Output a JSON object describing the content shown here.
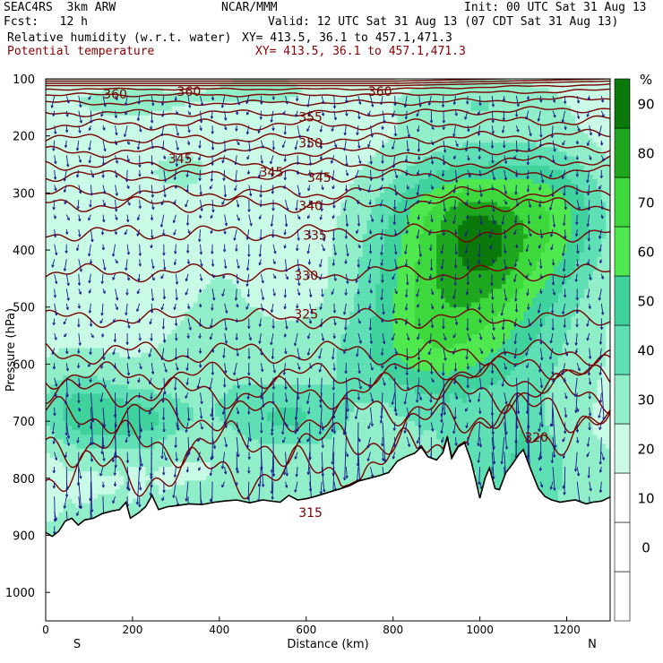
{
  "header": {
    "model": "SEAC4RS  3km ARW",
    "org": "NCAR/MMM",
    "init": "Init: 00 UTC Sat 31 Aug 13",
    "fcst": "Fcst:   12 h",
    "valid": "Valid: 12 UTC Sat 31 Aug 13 (07 CDT Sat 31 Aug 13)",
    "field1": "Relative humidity (w.r.t. water)",
    "xy1": "XY= 413.5, 36.1 to 457.1,471.3",
    "field2": "Potential temperature",
    "xy2": "XY= 413.5, 36.1 to 457.1,471.3"
  },
  "colors": {
    "rh_bins": [
      "#ffffff",
      "#ffffff",
      "#ffffff",
      "#c8fae6",
      "#90eec8",
      "#5fe0b4",
      "#3fd29c",
      "#4fe84f",
      "#3cd83c",
      "#1fa81f",
      "#0b780b"
    ],
    "theta": "#7a0000",
    "wind": "#1a1a8c",
    "terrain": "#000000"
  },
  "chart_data": {
    "type": "heatmap",
    "xlabel": "Distance (km)",
    "ylabel": "Pressure (hPa)",
    "xlim": [
      0,
      1300
    ],
    "ylim": [
      1050,
      100
    ],
    "xticks": [
      0,
      200,
      400,
      600,
      800,
      1000,
      1200
    ],
    "yticks": [
      100,
      200,
      300,
      400,
      500,
      600,
      700,
      800,
      900,
      1000
    ],
    "end_labels": {
      "left": "S",
      "right": "N"
    },
    "colorbar": {
      "unit": "%",
      "ticks": [
        0,
        10,
        20,
        30,
        40,
        50,
        60,
        70,
        80,
        90
      ],
      "range": [
        -10,
        100
      ]
    },
    "theta_labels": [
      {
        "value": "360",
        "x": 160,
        "p": 127
      },
      {
        "value": "360",
        "x": 330,
        "p": 122
      },
      {
        "value": "360",
        "x": 770,
        "p": 122
      },
      {
        "value": "355",
        "x": 610,
        "p": 167
      },
      {
        "value": "350",
        "x": 610,
        "p": 212
      },
      {
        "value": "345",
        "x": 310,
        "p": 240
      },
      {
        "value": "345",
        "x": 520,
        "p": 263
      },
      {
        "value": "345",
        "x": 630,
        "p": 273
      },
      {
        "value": "340",
        "x": 610,
        "p": 322
      },
      {
        "value": "335",
        "x": 620,
        "p": 374
      },
      {
        "value": "330",
        "x": 600,
        "p": 445
      },
      {
        "value": "325",
        "x": 600,
        "p": 512
      },
      {
        "value": "320",
        "x": 1130,
        "p": 728
      },
      {
        "value": "315",
        "x": 610,
        "p": 860
      }
    ]
  }
}
